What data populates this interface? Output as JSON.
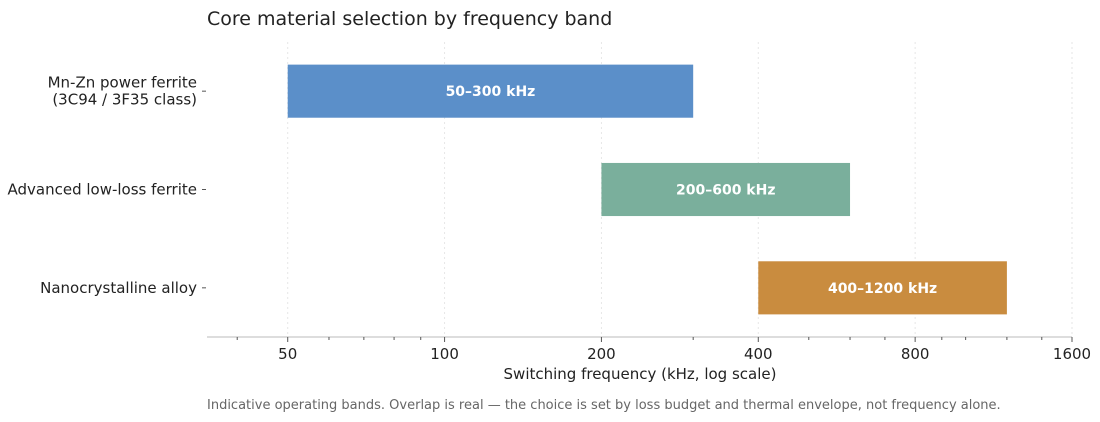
{
  "chart_data": {
    "type": "bar",
    "orientation": "horizontal",
    "title": "Core material selection by frequency band",
    "xlabel": "Switching frequency (kHz, log scale)",
    "ylabel": "",
    "x_scale": "log",
    "xlim": [
      35,
      1600
    ],
    "xticks": [
      50,
      100,
      200,
      400,
      800,
      1600
    ],
    "grid": true,
    "categories": [
      [
        "Mn-Zn power ferrite",
        "(3C94 / 3F35 class)"
      ],
      [
        "Advanced low-loss ferrite"
      ],
      [
        "Nanocrystalline alloy"
      ]
    ],
    "ranges": [
      {
        "start": 50,
        "end": 300,
        "label": "50–300 kHz",
        "color": "#5b8fc9"
      },
      {
        "start": 200,
        "end": 600,
        "label": "200–600 kHz",
        "color": "#7aaf9c"
      },
      {
        "start": 400,
        "end": 1200,
        "label": "400–1200 kHz",
        "color": "#c98c3f"
      }
    ],
    "note": "Indicative operating bands. Overlap is real — the choice is set by loss budget and thermal envelope, not frequency alone."
  }
}
